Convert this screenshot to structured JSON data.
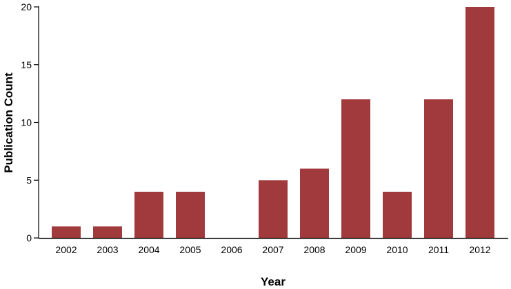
{
  "chart_data": {
    "type": "bar",
    "categories": [
      "2002",
      "2003",
      "2004",
      "2005",
      "2006",
      "2007",
      "2008",
      "2009",
      "2010",
      "2011",
      "2012"
    ],
    "values": [
      1,
      1,
      4,
      4,
      0,
      5,
      6,
      12,
      4,
      12,
      20
    ],
    "xlabel": "Year",
    "ylabel": "Publication Count",
    "ylim": [
      0,
      20
    ],
    "yticks": [
      "0",
      "5",
      "10",
      "15",
      "20"
    ],
    "grid": false,
    "bar_color": "#a03a3c",
    "axis_color": "#000000"
  }
}
